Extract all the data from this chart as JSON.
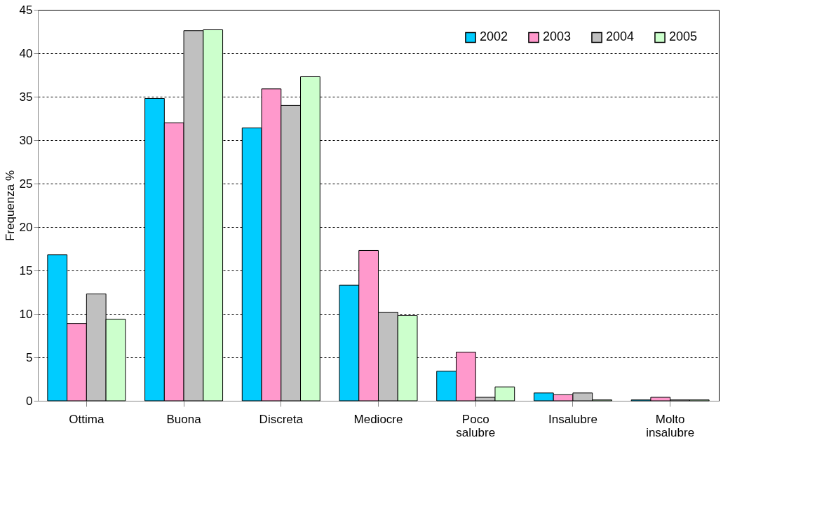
{
  "chart_data": {
    "type": "bar",
    "ylabel": "Frequenza %",
    "categories": [
      "Ottima",
      "Buona",
      "Discreta",
      "Mediocre",
      "Poco salubre",
      "Insalubre",
      "Molto insalubre"
    ],
    "series": [
      {
        "name": "2002",
        "color": "#00ccff",
        "values": [
          16.8,
          34.8,
          31.4,
          13.3,
          3.4,
          0.9,
          0.1
        ]
      },
      {
        "name": "2003",
        "color": "#ff99cc",
        "values": [
          8.9,
          32.0,
          35.9,
          17.3,
          5.6,
          0.7,
          0.4
        ]
      },
      {
        "name": "2004",
        "color": "#c0c0c0",
        "values": [
          12.3,
          42.6,
          34.0,
          10.2,
          0.4,
          0.9,
          0.1
        ]
      },
      {
        "name": "2005",
        "color": "#ccffcc",
        "values": [
          9.4,
          42.7,
          37.3,
          9.8,
          1.6,
          0.1,
          0.1
        ]
      }
    ],
    "ylim": [
      0,
      45
    ],
    "yticks": [
      0,
      5,
      10,
      15,
      20,
      25,
      30,
      35,
      40,
      45
    ],
    "grid": "y",
    "legend": "top right"
  }
}
